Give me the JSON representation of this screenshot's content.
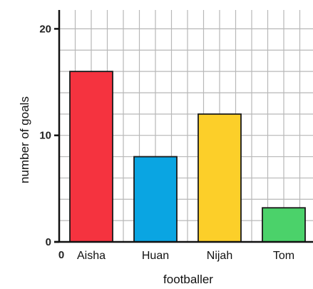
{
  "chart_data": {
    "type": "bar",
    "title": "",
    "xlabel": "footballer",
    "ylabel": "number of goals",
    "x_origin_label": "0",
    "categories": [
      "Aisha",
      "Huan",
      "Nijah",
      "Tom"
    ],
    "values": [
      16,
      8,
      12,
      3.2
    ],
    "colors": [
      "#f5333f",
      "#0aa5e2",
      "#fccf29",
      "#4bd26a"
    ],
    "ylim": [
      0,
      21
    ],
    "major_ticks": [
      0,
      10,
      20
    ],
    "minor_gridline_step": 2,
    "grid": true,
    "grid_color": "#b8b8b8"
  }
}
